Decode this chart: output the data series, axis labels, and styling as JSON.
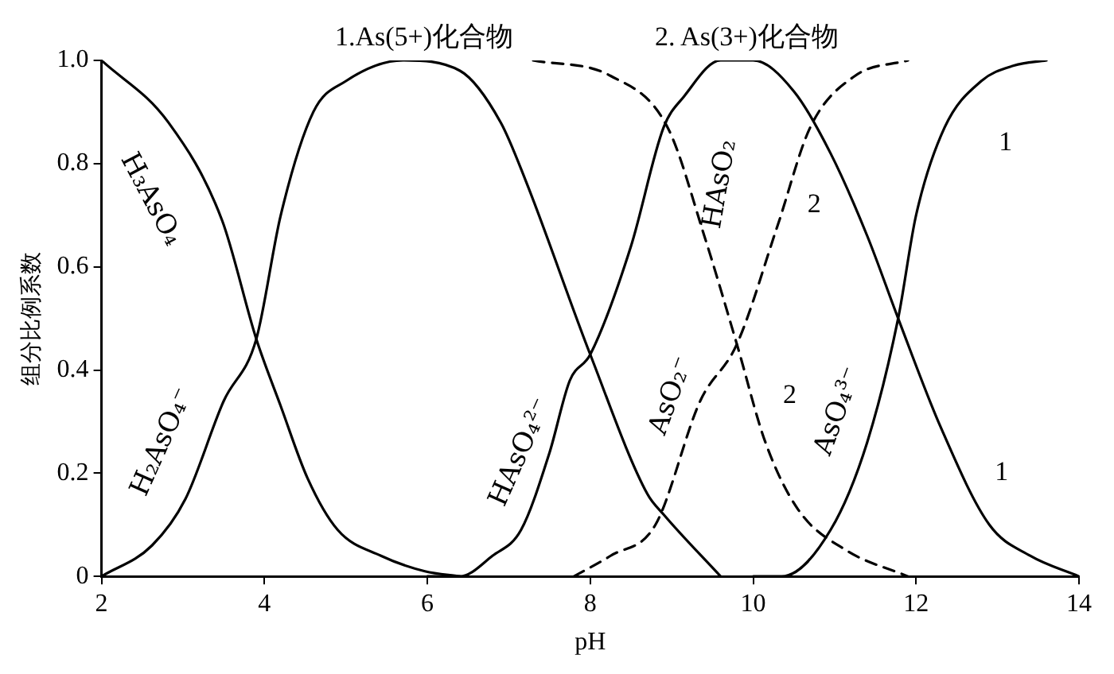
{
  "chart_data": {
    "type": "line",
    "xlabel": "pH",
    "ylabel": "组分比例系数",
    "xlim": [
      2,
      14
    ],
    "xticks": [
      2,
      4,
      6,
      8,
      10,
      12,
      14
    ],
    "ylim": [
      0,
      1
    ],
    "yticks": [
      0,
      0.2,
      0.4,
      0.6,
      0.8,
      {
        "value": 1,
        "label": "1.0"
      }
    ],
    "marker": "none",
    "legend": false,
    "series": [
      {
        "name": "H₃AsO₄",
        "color": "#000000",
        "line_style": "solid",
        "x": [
          2,
          2.82,
          3.48,
          3.9,
          4.2,
          4.53,
          4.9,
          5.43,
          5.97,
          6.4
        ],
        "values": [
          1,
          0.88,
          0.69,
          0.46,
          0.33,
          0.19,
          0.09,
          0.04,
          0.01,
          0
        ]
      },
      {
        "name": "H₂AsO₄⁻",
        "color": "#000000",
        "line_style": "solid",
        "x": [
          2,
          2.62,
          3.03,
          3.5,
          3.9,
          4.2,
          4.6,
          5,
          5.7,
          6.4,
          6.9,
          7.2,
          8,
          8.7,
          8.9,
          9.6
        ],
        "values": [
          0,
          0.06,
          0.15,
          0.34,
          0.46,
          0.7,
          0.9,
          0.96,
          1,
          0.98,
          0.88,
          0.77,
          0.43,
          0.16,
          0.12,
          0
        ]
      },
      {
        "name": "HAsO₄²⁻",
        "color": "#000000",
        "line_style": "solid",
        "x": [
          6,
          6.4,
          6.8,
          7.15,
          7.5,
          7.75,
          8,
          8.5,
          8.9,
          9.15,
          9.6,
          10,
          10.5,
          10.95,
          11.4,
          11.78,
          12.3,
          12.9,
          13.4,
          14
        ],
        "values": [
          0,
          0,
          0.04,
          0.09,
          0.24,
          0.38,
          0.43,
          0.64,
          0.87,
          0.93,
          1,
          1,
          0.94,
          0.82,
          0.66,
          0.5,
          0.29,
          0.1,
          0.04,
          0
        ]
      },
      {
        "name": "AsO₄³⁻",
        "color": "#000000",
        "line_style": "solid",
        "x": [
          10,
          10.35,
          10.95,
          11.4,
          11.78,
          12,
          12.35,
          12.8,
          13.2,
          13.6
        ],
        "values": [
          0,
          0,
          0.09,
          0.26,
          0.5,
          0.7,
          0.87,
          0.96,
          0.99,
          1
        ]
      },
      {
        "name": "HAsO₂",
        "color": "#000000",
        "line_style": "dashed",
        "x": [
          7.3,
          8.25,
          8.95,
          9.4,
          9.8,
          10.15,
          10.55,
          11.15,
          11.9
        ],
        "values": [
          1,
          0.97,
          0.87,
          0.66,
          0.45,
          0.26,
          0.13,
          0.05,
          0
        ]
      },
      {
        "name": "AsO₂⁻",
        "color": "#000000",
        "line_style": "dashed",
        "x": [
          7.8,
          8.25,
          8.8,
          9.35,
          9.8,
          10.3,
          10.7,
          11.25,
          11.9
        ],
        "values": [
          0,
          0.04,
          0.1,
          0.34,
          0.45,
          0.68,
          0.87,
          0.97,
          1
        ]
      }
    ],
    "annotations": [
      "1.As(5+)化合物",
      "2. As(3+)化合物",
      "2",
      "2",
      "1",
      "1"
    ]
  }
}
